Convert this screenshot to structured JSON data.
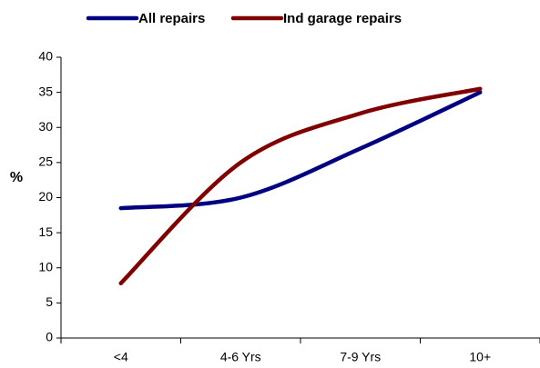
{
  "chart_data": {
    "type": "line",
    "y_label": "%",
    "categories": [
      "<4",
      "4-6 Yrs",
      "7-9 Yrs",
      "10+"
    ],
    "series": [
      {
        "name": "All repairs",
        "color": "#000080",
        "values": [
          18.5,
          20,
          27,
          35
        ]
      },
      {
        "name": "Ind garage repairs",
        "color": "#800000",
        "values": [
          7.8,
          25,
          32,
          35.5
        ]
      }
    ],
    "ylim": [
      0,
      40
    ],
    "yticks": [
      0,
      5,
      10,
      15,
      20,
      25,
      30,
      35,
      40
    ],
    "smooth": true,
    "legend": "top"
  }
}
